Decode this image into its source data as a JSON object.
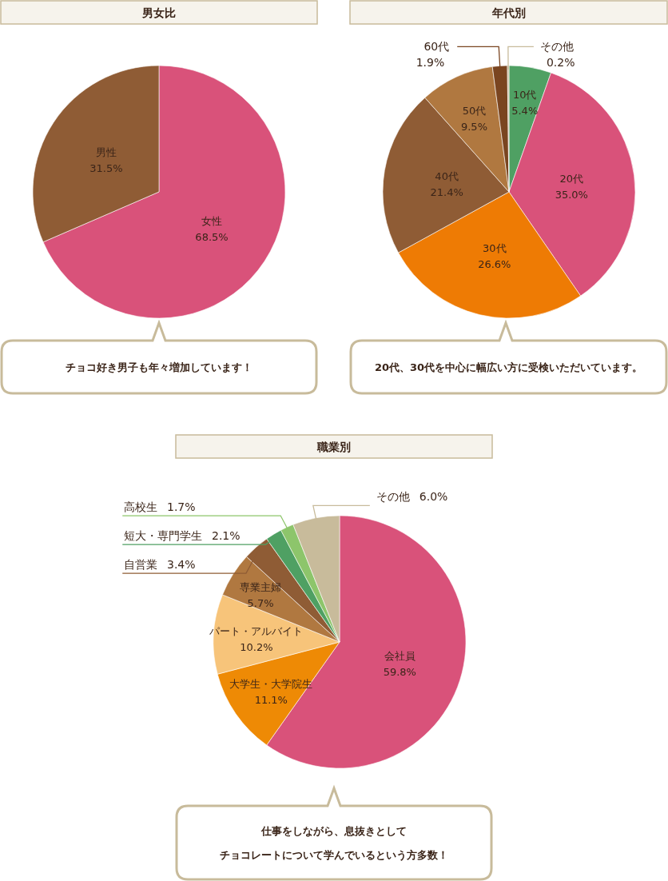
{
  "chart_data": [
    {
      "type": "pie",
      "title": "男女比",
      "categories": [
        "女性",
        "男性"
      ],
      "values": [
        68.5,
        31.5
      ],
      "colors": [
        "#d9527a",
        "#8f5c35"
      ],
      "value_labels": [
        "68.5%",
        "31.5%"
      ],
      "annotations": [
        "チョコ好き男子も年々増加しています！"
      ]
    },
    {
      "type": "pie",
      "title": "年代別",
      "categories": [
        "10代",
        "20代",
        "30代",
        "40代",
        "50代",
        "60代",
        "その他"
      ],
      "values": [
        5.4,
        35.0,
        26.6,
        21.4,
        9.5,
        1.9,
        0.2
      ],
      "colors": [
        "#4fa063",
        "#d9527a",
        "#ee7b04",
        "#8f5c35",
        "#b07840",
        "#7a4520",
        "#c8bb9b"
      ],
      "value_labels": [
        "5.4%",
        "35.0%",
        "26.6%",
        "21.4%",
        "9.5%",
        "1.9%",
        "0.2%"
      ],
      "annotations": [
        "20代、30代を中心に幅広い方に受検いただいています。"
      ]
    },
    {
      "type": "pie",
      "title": "職業別",
      "categories": [
        "会社員",
        "大学生・大学院生",
        "パート・アルバイト",
        "専業主婦",
        "自営業",
        "短大・専門学生",
        "高校生",
        "その他"
      ],
      "values": [
        59.8,
        11.1,
        10.2,
        5.7,
        3.4,
        2.1,
        1.7,
        6.0
      ],
      "colors": [
        "#d9527a",
        "#ee8a05",
        "#f7c47a",
        "#b07840",
        "#8f5c35",
        "#4fa063",
        "#8dc56b",
        "#c8bb9b"
      ],
      "value_labels": [
        "59.8%",
        "11.1%",
        "10.2%",
        "5.7%",
        "3.4%",
        "2.1%",
        "1.7%",
        "6.0%"
      ],
      "annotations": [
        "仕事をしながら、息抜きとして",
        "チョコレートについて学んでいるという方多数！"
      ]
    }
  ]
}
